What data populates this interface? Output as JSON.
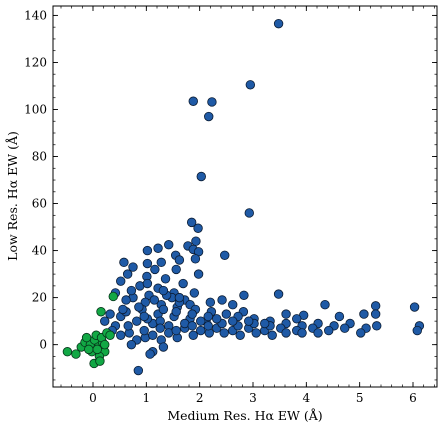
{
  "chart_data": {
    "type": "scatter",
    "title": "",
    "xlabel": "Medium Res. Hα EW (Å)",
    "ylabel": "Low Res. Hα EW (Å)",
    "xlim": [
      -0.75,
      6.45
    ],
    "ylim": [
      -18,
      144
    ],
    "xticks": [
      0,
      1,
      2,
      3,
      4,
      5,
      6
    ],
    "yticks": [
      0,
      20,
      40,
      60,
      80,
      100,
      120,
      140
    ],
    "x_minor_step": 0.2,
    "y_minor_step": 5,
    "grid": false,
    "legend": "none",
    "series": [
      {
        "color": "#1f5aa6",
        "edge": "#0b1c33",
        "points": [
          [
            3.48,
            136.5
          ],
          [
            2.95,
            110.5
          ],
          [
            1.88,
            103.5
          ],
          [
            2.23,
            103.2
          ],
          [
            2.17,
            97
          ],
          [
            2.03,
            71.5
          ],
          [
            2.93,
            56
          ],
          [
            1.85,
            52
          ],
          [
            1.97,
            49.5
          ],
          [
            1.93,
            44
          ],
          [
            1.78,
            42
          ],
          [
            1.88,
            40.5
          ],
          [
            1.98,
            39.5
          ],
          [
            1.42,
            42.5
          ],
          [
            1.22,
            41
          ],
          [
            1.02,
            40
          ],
          [
            0.58,
            35
          ],
          [
            0.75,
            33
          ],
          [
            1.02,
            34.5
          ],
          [
            1.28,
            35
          ],
          [
            1.55,
            38
          ],
          [
            1.62,
            36
          ],
          [
            1.92,
            36.5
          ],
          [
            2.47,
            38
          ],
          [
            1.16,
            32
          ],
          [
            1.56,
            32
          ],
          [
            1.98,
            30
          ],
          [
            0.65,
            30
          ],
          [
            1.01,
            29
          ],
          [
            1.36,
            28
          ],
          [
            1.69,
            26
          ],
          [
            0.52,
            27
          ],
          [
            0.88,
            25
          ],
          [
            1.22,
            24
          ],
          [
            1.52,
            22
          ],
          [
            2.83,
            21
          ],
          [
            3.48,
            21.5
          ],
          [
            4.35,
            17
          ],
          [
            5.3,
            16.5
          ],
          [
            6.03,
            16
          ],
          [
            5.08,
            13
          ],
          [
            5.3,
            13
          ],
          [
            4.62,
            12
          ],
          [
            3.95,
            12.5
          ],
          [
            2.42,
            19
          ],
          [
            2.62,
            17
          ],
          [
            2.82,
            14
          ],
          [
            3.62,
            13
          ],
          [
            3.82,
            11
          ],
          [
            2.2,
            18
          ],
          [
            1.72,
            19
          ],
          [
            1.82,
            17
          ],
          [
            1.48,
            20
          ],
          [
            1.05,
            21
          ],
          [
            0.75,
            20
          ],
          [
            0.42,
            22
          ],
          [
            0.62,
            19
          ],
          [
            0.98,
            18
          ],
          [
            1.28,
            17
          ],
          [
            1.58,
            16
          ],
          [
            1.92,
            15
          ],
          [
            2.22,
            14
          ],
          [
            2.5,
            13
          ],
          [
            2.72,
            12
          ],
          [
            3.02,
            11
          ],
          [
            3.32,
            10
          ],
          [
            3.62,
            9
          ],
          [
            3.92,
            8
          ],
          [
            4.22,
            9
          ],
          [
            4.52,
            8
          ],
          [
            4.82,
            9
          ],
          [
            5.12,
            7
          ],
          [
            5.32,
            8
          ],
          [
            6.12,
            8
          ],
          [
            6.08,
            6
          ],
          [
            5.02,
            5
          ],
          [
            4.72,
            7
          ],
          [
            4.42,
            6
          ],
          [
            4.12,
            7
          ],
          [
            3.82,
            6
          ],
          [
            3.52,
            7
          ],
          [
            3.22,
            6
          ],
          [
            2.92,
            7
          ],
          [
            2.62,
            6
          ],
          [
            2.32,
            7
          ],
          [
            2.02,
            6
          ],
          [
            1.72,
            7
          ],
          [
            1.42,
            8
          ],
          [
            1.12,
            9
          ],
          [
            0.82,
            10
          ],
          [
            0.52,
            12
          ],
          [
            0.32,
            13
          ],
          [
            0.62,
            14
          ],
          [
            0.92,
            15
          ],
          [
            1.22,
            13
          ],
          [
            1.52,
            12
          ],
          [
            1.82,
            11
          ],
          [
            2.12,
            10
          ],
          [
            2.42,
            9
          ],
          [
            2.72,
            8
          ],
          [
            3.02,
            9
          ],
          [
            3.32,
            8
          ],
          [
            3.62,
            5
          ],
          [
            3.92,
            5
          ],
          [
            4.22,
            5
          ],
          [
            2.18,
            5
          ],
          [
            1.88,
            4
          ],
          [
            1.58,
            3
          ],
          [
            1.28,
            2
          ],
          [
            0.98,
            3
          ],
          [
            0.68,
            5
          ],
          [
            0.42,
            8
          ],
          [
            0.22,
            10
          ],
          [
            0.52,
            4
          ],
          [
            0.82,
            2
          ],
          [
            1.12,
            4
          ],
          [
            1.42,
            5
          ],
          [
            1.72,
            9
          ],
          [
            2.02,
            10
          ],
          [
            2.32,
            11
          ],
          [
            2.62,
            10
          ],
          [
            2.92,
            10
          ],
          [
            3.22,
            9
          ],
          [
            1.32,
            -1
          ],
          [
            1.12,
            -3
          ],
          [
            1.07,
            -4
          ],
          [
            0.85,
            -11
          ],
          [
            0.72,
            0
          ],
          [
            0.96,
            6
          ],
          [
            1.26,
            10
          ],
          [
            1.56,
            14
          ],
          [
            1.86,
            13
          ],
          [
            2.16,
            12
          ],
          [
            2.46,
            5
          ],
          [
            2.76,
            4
          ],
          [
            3.06,
            5
          ],
          [
            3.36,
            4
          ],
          [
            1.02,
            11
          ],
          [
            1.32,
            15
          ],
          [
            1.62,
            18
          ],
          [
            1.38,
            21
          ],
          [
            1.15,
            19
          ],
          [
            0.86,
            16
          ],
          [
            0.56,
            15
          ],
          [
            0.36,
            6
          ],
          [
            0.66,
            8
          ],
          [
            0.96,
            12
          ],
          [
            1.26,
            7
          ],
          [
            1.56,
            6
          ],
          [
            1.86,
            8
          ],
          [
            2.16,
            8
          ],
          [
            0.72,
            23
          ],
          [
            1.02,
            26
          ],
          [
            1.32,
            23
          ],
          [
            1.62,
            20
          ],
          [
            1.9,
            22
          ]
        ]
      },
      {
        "color": "#12a845",
        "edge": "#06351a",
        "points": [
          [
            -0.48,
            -3
          ],
          [
            -0.32,
            -4
          ],
          [
            -0.22,
            -1
          ],
          [
            -0.15,
            1
          ],
          [
            -0.05,
            0
          ],
          [
            0.03,
            2
          ],
          [
            0.1,
            -1
          ],
          [
            0.18,
            1
          ],
          [
            0.22,
            -3
          ],
          [
            0.12,
            -5
          ],
          [
            0.02,
            -8
          ],
          [
            0.13,
            -7
          ],
          [
            -0.02,
            -3
          ],
          [
            0.06,
            4
          ],
          [
            0.16,
            3
          ],
          [
            0.26,
            5
          ],
          [
            -0.08,
            -2
          ],
          [
            0.22,
            0
          ],
          [
            0.38,
            20.5
          ],
          [
            0.15,
            14
          ],
          [
            -0.12,
            3
          ],
          [
            0.32,
            4
          ],
          [
            0.08,
            -2
          ]
        ]
      }
    ]
  }
}
